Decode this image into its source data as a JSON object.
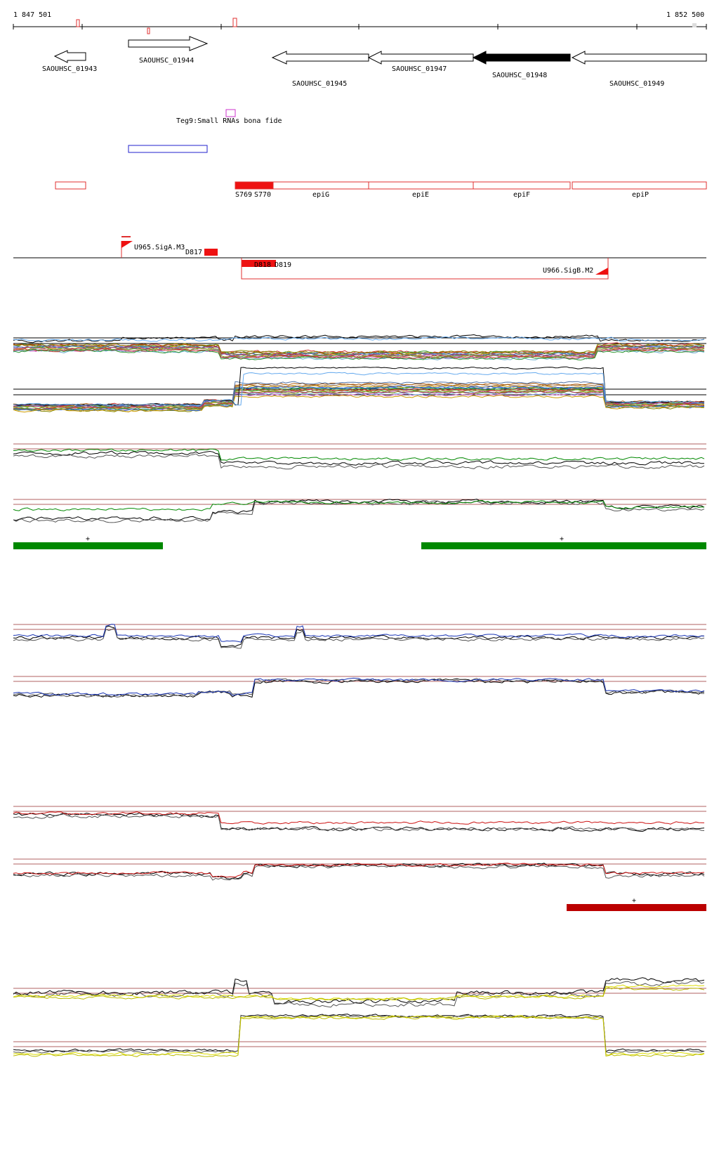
{
  "ruler": {
    "start": "1 847 501",
    "end": "1 852 500"
  },
  "genes": [
    {
      "label": "SAOUHSC_01943",
      "strand": "-",
      "filled": false
    },
    {
      "label": "SAOUHSC_01944",
      "strand": "+",
      "filled": false
    },
    {
      "label": "SAOUHSC_01945",
      "strand": "-",
      "filled": false
    },
    {
      "label": "SAOUHSC_01947",
      "strand": "-",
      "filled": false
    },
    {
      "label": "SAOUHSC_01948",
      "strand": "-",
      "filled": true
    },
    {
      "label": "SAOUHSC_01949",
      "strand": "-",
      "filled": false
    }
  ],
  "small_rna": {
    "label": "Teg9:Small RNAs bona fide"
  },
  "segments": [
    {
      "label": ""
    },
    {
      "label": "S769"
    },
    {
      "label": "S770"
    },
    {
      "label": "epiG"
    },
    {
      "label": "epiE"
    },
    {
      "label": "epiF"
    },
    {
      "label": "epiP"
    }
  ],
  "tss": [
    {
      "label": "U965.SigA.M3",
      "strand": "+"
    },
    {
      "label": "U966.SigB.M2",
      "strand": "-"
    }
  ],
  "downshifts": [
    {
      "label": "D817"
    },
    {
      "label": "D818"
    },
    {
      "label": "D819"
    }
  ],
  "condition_markers": [
    {
      "label": "+",
      "color": "#008800"
    },
    {
      "label": "+",
      "color": "#008800"
    },
    {
      "label": "+",
      "color": "#bb0000"
    }
  ],
  "colors": {
    "green": "#008800",
    "blue": "#1a35b5",
    "red": "#cc1111",
    "yellow": "#dddd00",
    "ref": "#b06060"
  }
}
